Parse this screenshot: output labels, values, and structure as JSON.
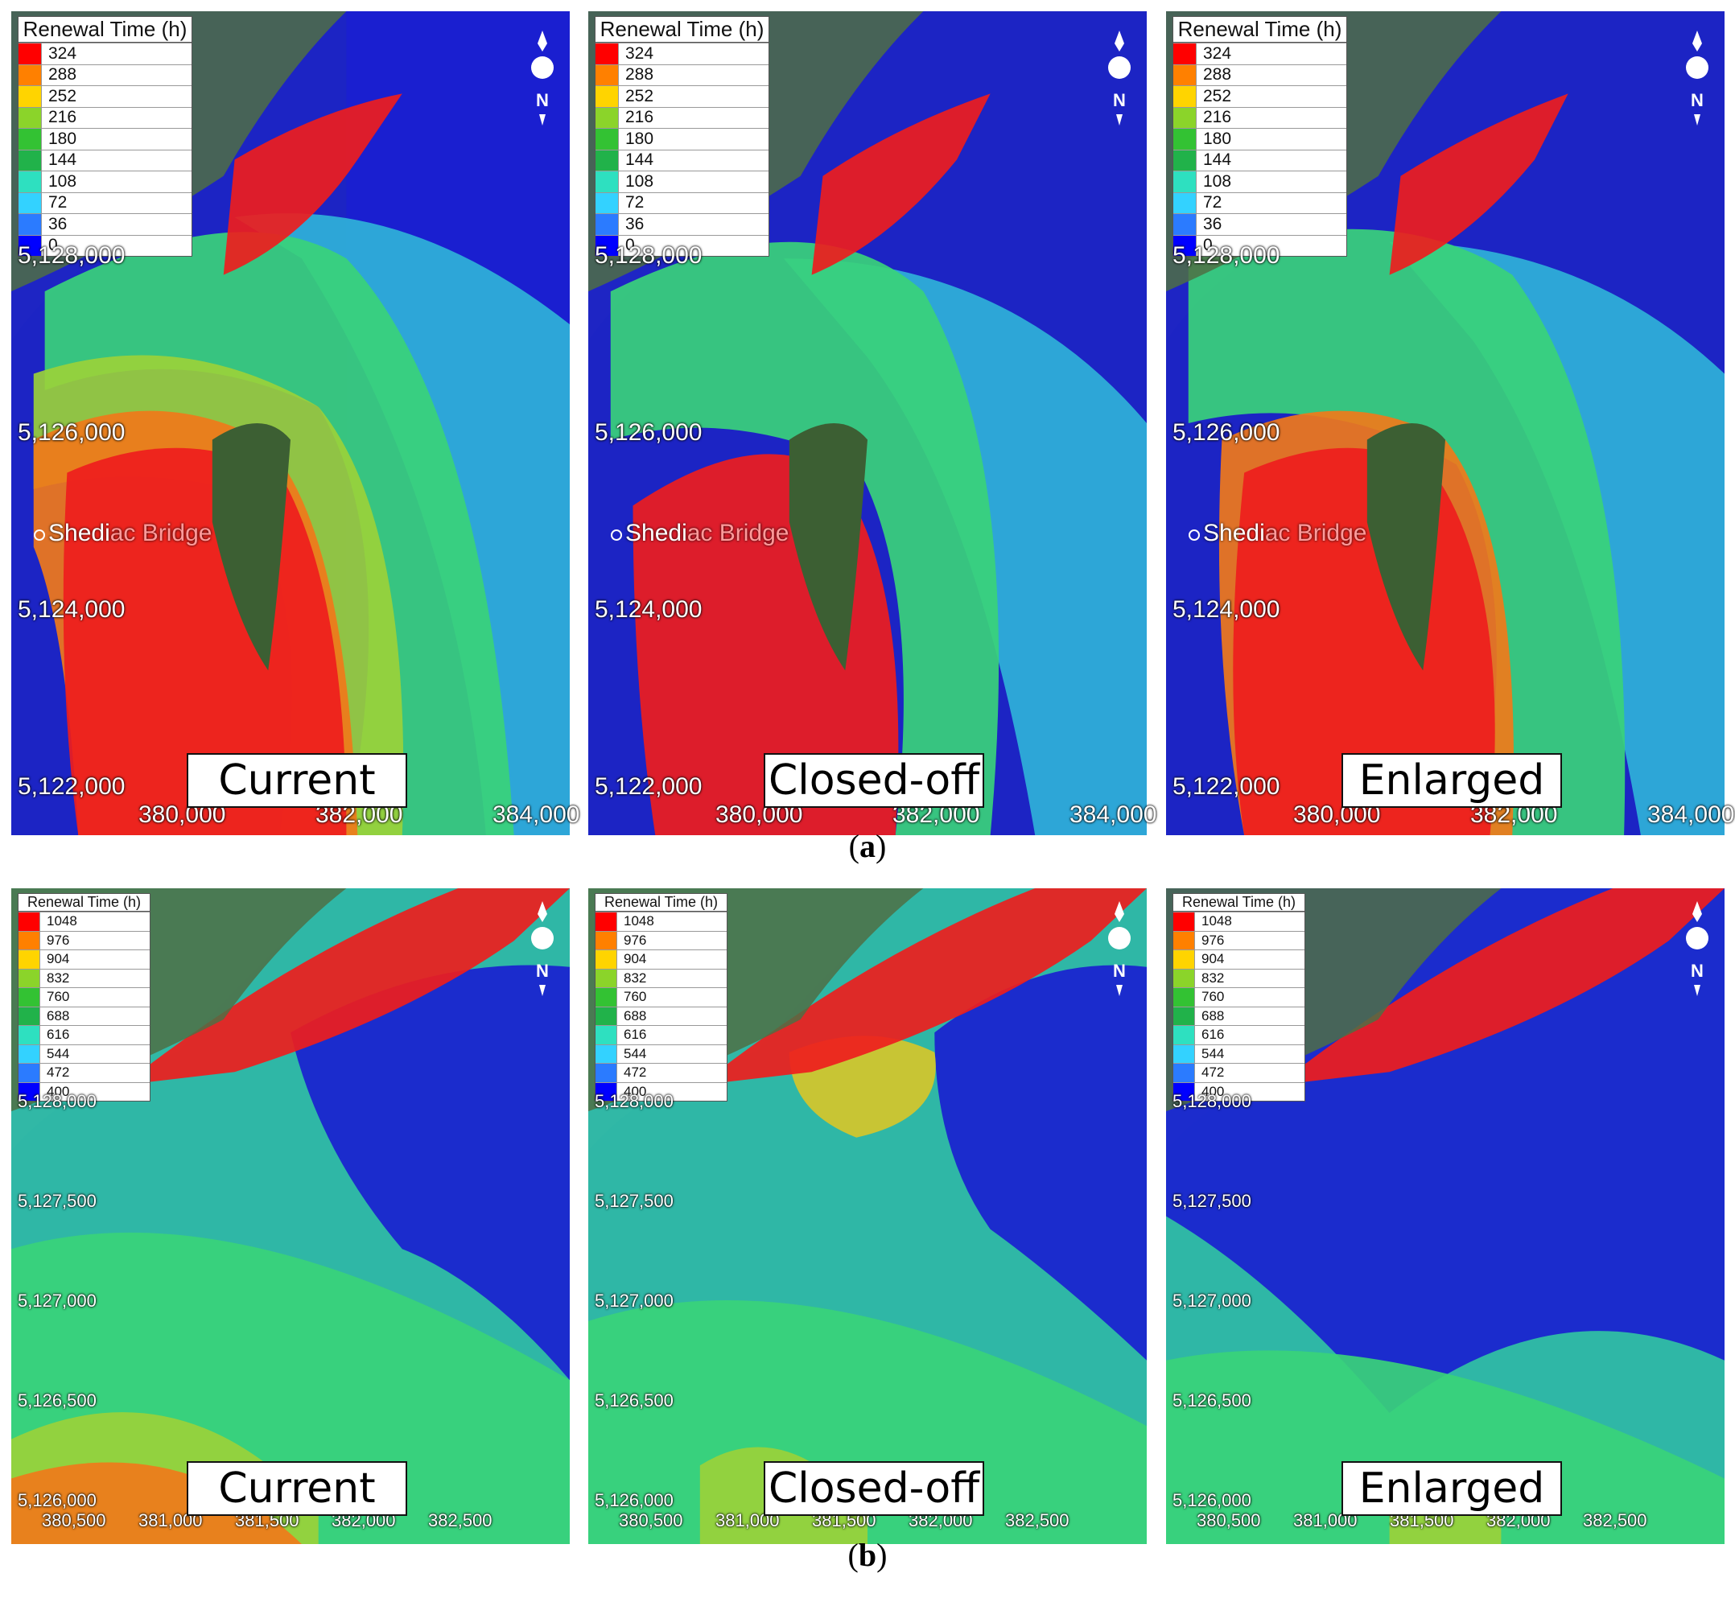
{
  "figure_a": {
    "label_prefix": "(",
    "label_letter": "a",
    "label_suffix": ")",
    "legend": {
      "title": "Renewal Time (h)",
      "values": [
        "324",
        "288",
        "252",
        "216",
        "180",
        "144",
        "108",
        "72",
        "36",
        "0"
      ],
      "colors": [
        "#ff0000",
        "#ff8000",
        "#ffd400",
        "#8bd42a",
        "#33c233",
        "#21b24a",
        "#2ee0c0",
        "#33d2ff",
        "#2b7bff",
        "#0000ff"
      ]
    },
    "panels": [
      {
        "scenario": "Current",
        "y_ticks": [
          "5,128,000",
          "5,126,000",
          "5,124,000",
          "5,122,000"
        ],
        "x_ticks": [
          "380,000",
          "382,000",
          "384,000"
        ],
        "place": {
          "head": "Shedi",
          "tail": "ac Bridge"
        }
      },
      {
        "scenario": "Closed-off",
        "y_ticks": [
          "5,128,000",
          "5,126,000",
          "5,124,000",
          "5,122,000"
        ],
        "x_ticks": [
          "380,000",
          "382,000",
          "384,000"
        ],
        "place": {
          "head": "Shedi",
          "tail": "ac Bridge"
        }
      },
      {
        "scenario": "Enlarged",
        "y_ticks": [
          "5,128,000",
          "5,126,000",
          "5,124,000",
          "5,122,000"
        ],
        "x_ticks": [
          "380,000",
          "382,000",
          "384,000"
        ],
        "place": {
          "head": "Shedi",
          "tail": "ac Bridge"
        }
      }
    ]
  },
  "figure_b": {
    "label_prefix": "(",
    "label_letter": "b",
    "label_suffix": ")",
    "legend": {
      "title": "Renewal Time (h)",
      "values": [
        "1048",
        "976",
        "904",
        "832",
        "760",
        "688",
        "616",
        "544",
        "472",
        "400"
      ],
      "colors": [
        "#ff0000",
        "#ff8000",
        "#ffd400",
        "#8bd42a",
        "#33c233",
        "#21b24a",
        "#2ee0c0",
        "#33d2ff",
        "#2b7bff",
        "#0000ff"
      ]
    },
    "panels": [
      {
        "scenario": "Current",
        "y_ticks": [
          "5,128,000",
          "5,127,500",
          "5,127,000",
          "5,126,500",
          "5,126,000"
        ],
        "x_ticks": [
          "380,500",
          "381,000",
          "381,500",
          "382,000",
          "382,500"
        ]
      },
      {
        "scenario": "Closed-off",
        "y_ticks": [
          "5,128,000",
          "5,127,500",
          "5,127,000",
          "5,126,500",
          "5,126,000"
        ],
        "x_ticks": [
          "380,500",
          "381,000",
          "381,500",
          "382,000",
          "382,500"
        ]
      },
      {
        "scenario": "Enlarged",
        "y_ticks": [
          "5,128,000",
          "5,127,500",
          "5,127,000",
          "5,126,500",
          "5,126,000"
        ],
        "x_ticks": [
          "380,500",
          "381,000",
          "381,500",
          "382,000",
          "382,500"
        ]
      }
    ]
  },
  "north_arrow": {
    "letter": "N"
  }
}
